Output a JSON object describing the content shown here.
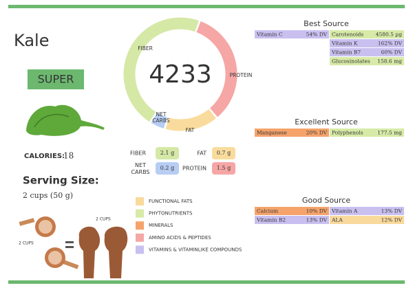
{
  "header": {
    "title": "Kale",
    "badge": "SUPER"
  },
  "calories": {
    "label": "CALORIES:",
    "value": 18
  },
  "serving": {
    "title": "Serving Size:",
    "amount": "2 cups (50 g)",
    "cups_label": "2 CUPS",
    "hands_label": "2 CUPS"
  },
  "donut": {
    "center": 4233,
    "macros": [
      {
        "name": "FIBER",
        "value": 2.1,
        "label": "2.1 g",
        "color": "#d5e8a6"
      },
      {
        "name": "NET CARBS",
        "value": 0.2,
        "label": "0.2 g",
        "color": "#b7cdf3"
      },
      {
        "name": "FAT",
        "value": 0.7,
        "label": "0.7 g",
        "color": "#f9dc9d"
      },
      {
        "name": "PROTEIN",
        "value": 1.5,
        "label": "1.5 g",
        "color": "#f5a6a5"
      }
    ]
  },
  "legend": [
    {
      "name": "FUNCTIONAL FATS",
      "color": "#f9d99c"
    },
    {
      "name": "PHYTONUTRIENTS",
      "color": "#d7eaa7"
    },
    {
      "name": "MINERALS",
      "color": "#f5a36b"
    },
    {
      "name": "AMINO ACIDS & PEPTIDES",
      "color": "#f4a7a5"
    },
    {
      "name": "VITAMINS & VITAMINLIKE COMPOUNDS",
      "color": "#c9c0f0"
    }
  ],
  "sources": [
    {
      "title": "Best Source",
      "items": [
        {
          "name": "Vitamin C",
          "amount": "54% DV",
          "color": "#c9c0f0"
        },
        {
          "name": "Carotenoids",
          "amount": "4580.5 µg",
          "color": "#d7eaa7"
        },
        {
          "name": "Vitamin K",
          "amount": "162% DV",
          "color": "#c9c0f0"
        },
        {
          "name": "Vitamin B7",
          "amount": "60% DV",
          "color": "#c9c0f0"
        },
        {
          "name": "Glucosinolates",
          "amount": "158.6 mg",
          "color": "#d7eaa7"
        }
      ]
    },
    {
      "title": "Excellent Source",
      "items": [
        {
          "name": "Manganese",
          "amount": "20% DV",
          "color": "#f5a36b"
        },
        {
          "name": "Polyphenols",
          "amount": "177.5 mg",
          "color": "#d7eaa7"
        }
      ]
    },
    {
      "title": "Good Source",
      "items": [
        {
          "name": "Calcium",
          "amount": "10% DV",
          "color": "#f5a36b"
        },
        {
          "name": "Vitamin A",
          "amount": "13% DV",
          "color": "#c9c0f0"
        },
        {
          "name": "Vitamin B2",
          "amount": "13% DV",
          "color": "#c9c0f0"
        },
        {
          "name": "ALA",
          "amount": "12% DV",
          "color": "#f9d99c"
        }
      ]
    }
  ]
}
